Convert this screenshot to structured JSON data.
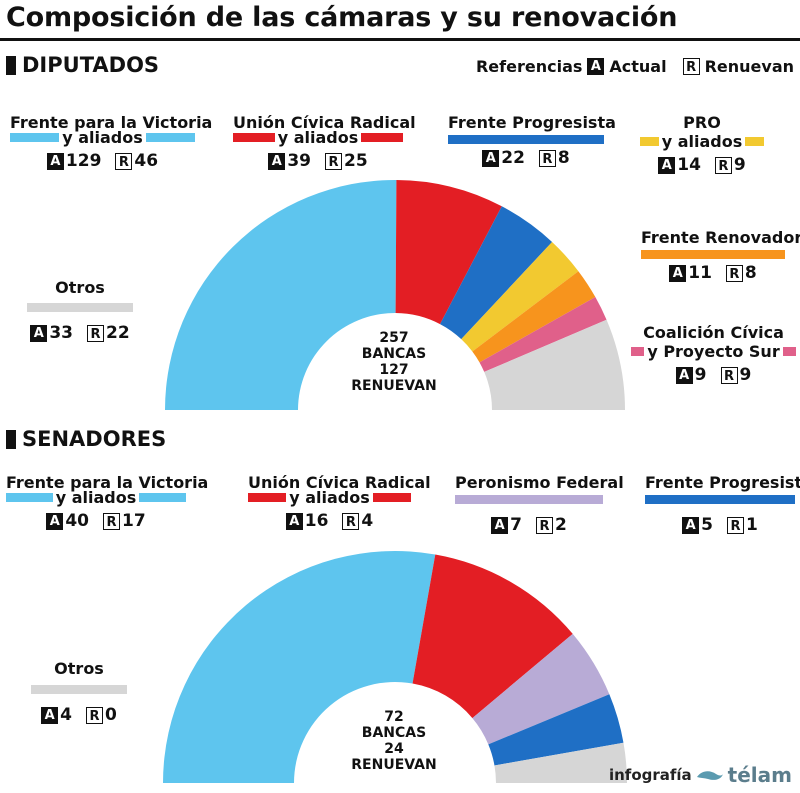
{
  "title": "Composición de las cámaras y su renovación",
  "legend": {
    "label": "Referencias",
    "actual_letter": "A",
    "actual_label": "Actual",
    "renew_letter": "R",
    "renew_label": "Renuevan"
  },
  "credit": {
    "text": "infografía",
    "brand": "télam"
  },
  "chart_data": [
    {
      "type": "pie",
      "variant": "semicircle",
      "title": "DIPUTADOS",
      "center": {
        "total": "257",
        "total_label": "BANCAS",
        "renew": "127",
        "renew_label": "RENUEVAN"
      },
      "series": [
        {
          "name": "Frente para la Victoria",
          "name2": "y aliados",
          "actual": 129,
          "renew": 46,
          "color": "#5ec5ee"
        },
        {
          "name": "Unión Cívica Radical",
          "name2": "y aliados",
          "actual": 39,
          "renew": 25,
          "color": "#e31e24"
        },
        {
          "name": "Frente Progresista",
          "name2": "",
          "actual": 22,
          "renew": 8,
          "color": "#1f6fc5"
        },
        {
          "name": "PRO",
          "name2": "y aliados",
          "actual": 14,
          "renew": 9,
          "color": "#f2c930"
        },
        {
          "name": "Frente Renovador",
          "name2": "",
          "actual": 11,
          "renew": 8,
          "color": "#f7941d"
        },
        {
          "name": "Coalición Cívica",
          "name2": "y Proyecto Sur",
          "actual": 9,
          "renew": 9,
          "color": "#e0608a"
        },
        {
          "name": "Otros",
          "name2": "",
          "actual": 33,
          "renew": 22,
          "color": "#d6d6d6"
        }
      ]
    },
    {
      "type": "pie",
      "variant": "semicircle",
      "title": "SENADORES",
      "center": {
        "total": "72",
        "total_label": "BANCAS",
        "renew": "24",
        "renew_label": "RENUEVAN"
      },
      "series": [
        {
          "name": "Frente para la Victoria",
          "name2": "y aliados",
          "actual": 40,
          "renew": 17,
          "color": "#5ec5ee"
        },
        {
          "name": "Unión Cívica Radical",
          "name2": "y aliados",
          "actual": 16,
          "renew": 4,
          "color": "#e31e24"
        },
        {
          "name": "Peronismo Federal",
          "name2": "",
          "actual": 7,
          "renew": 2,
          "color": "#b8abd6"
        },
        {
          "name": "Frente Progresista",
          "name2": "",
          "actual": 5,
          "renew": 1,
          "color": "#1f6fc5"
        },
        {
          "name": "Otros",
          "name2": "",
          "actual": 4,
          "renew": 0,
          "color": "#d6d6d6"
        }
      ]
    }
  ]
}
